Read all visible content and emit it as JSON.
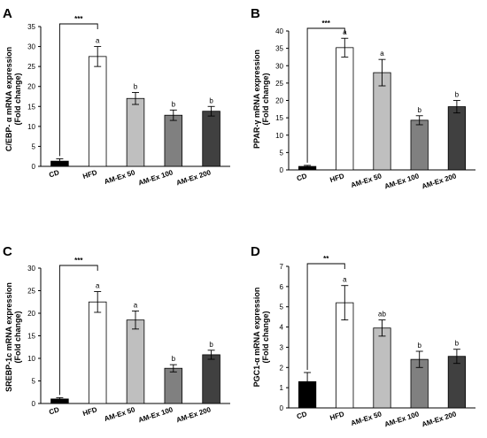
{
  "chart_data": [
    {
      "type": "bar",
      "panel": "A",
      "ylabel": [
        "C/EBP- α mRNA expression",
        "(Fold change)"
      ],
      "categories": [
        "CD",
        "HFD",
        "AM-Ex 50",
        "AM-Ex 100",
        "AM-Ex 200"
      ],
      "values": [
        1.3,
        27.5,
        17.0,
        12.8,
        13.8
      ],
      "errors": [
        0.6,
        2.5,
        1.5,
        1.3,
        1.2
      ],
      "letters": [
        "",
        "a",
        "b",
        "b",
        "b"
      ],
      "bar_colors": [
        "#000000",
        "#ffffff",
        "#bfbfbf",
        "#808080",
        "#404040"
      ],
      "ylim": [
        0,
        35
      ],
      "yticks": [
        0,
        5,
        10,
        15,
        20,
        25,
        30,
        35
      ],
      "significance": {
        "from": 0,
        "to": 1,
        "label": "***"
      }
    },
    {
      "type": "bar",
      "panel": "B",
      "ylabel": [
        "PPAR-γ mRNA expression",
        "(Fold change)"
      ],
      "categories": [
        "CD",
        "HFD",
        "AM-Ex 50",
        "AM-Ex 100",
        "AM-Ex 200"
      ],
      "values": [
        1.0,
        35.2,
        28.0,
        14.3,
        18.2
      ],
      "errors": [
        0.3,
        2.7,
        3.8,
        1.3,
        1.8
      ],
      "letters": [
        "",
        "a",
        "a",
        "b",
        "b"
      ],
      "bar_colors": [
        "#000000",
        "#ffffff",
        "#bfbfbf",
        "#808080",
        "#404040"
      ],
      "ylim": [
        0,
        40
      ],
      "yticks": [
        0,
        5,
        10,
        15,
        20,
        25,
        30,
        35,
        40
      ],
      "significance": {
        "from": 0,
        "to": 1,
        "label": "***"
      }
    },
    {
      "type": "bar",
      "panel": "C",
      "ylabel": [
        "SREBP-1c mRNA expression",
        "(Fold change)"
      ],
      "categories": [
        "CD",
        "HFD",
        "AM-Ex 50",
        "AM-Ex 100",
        "AM-Ex 200"
      ],
      "values": [
        1.0,
        22.5,
        18.5,
        7.8,
        10.8
      ],
      "errors": [
        0.3,
        2.3,
        2.0,
        0.8,
        1.0
      ],
      "letters": [
        "",
        "a",
        "a",
        "b",
        "b"
      ],
      "bar_colors": [
        "#000000",
        "#ffffff",
        "#bfbfbf",
        "#808080",
        "#404040"
      ],
      "ylim": [
        0,
        30
      ],
      "yticks": [
        0,
        5,
        10,
        15,
        20,
        25,
        30
      ],
      "significance": {
        "from": 0,
        "to": 1,
        "label": "***"
      }
    },
    {
      "type": "bar",
      "panel": "D",
      "ylabel": [
        "PGC1-α mRNA expression",
        "(Fold change)"
      ],
      "categories": [
        "CD",
        "HFD",
        "AM-Ex 50",
        "AM-Ex 100",
        "AM-Ex 200"
      ],
      "values": [
        1.3,
        5.2,
        3.95,
        2.4,
        2.55
      ],
      "errors": [
        0.45,
        0.85,
        0.4,
        0.4,
        0.35
      ],
      "letters": [
        "",
        "a",
        "ab",
        "b",
        "b"
      ],
      "bar_colors": [
        "#000000",
        "#ffffff",
        "#bfbfbf",
        "#808080",
        "#404040"
      ],
      "ylim": [
        0,
        7
      ],
      "yticks": [
        0,
        1,
        2,
        3,
        4,
        5,
        6,
        7
      ],
      "significance": {
        "from": 0,
        "to": 1,
        "label": "**"
      }
    }
  ]
}
